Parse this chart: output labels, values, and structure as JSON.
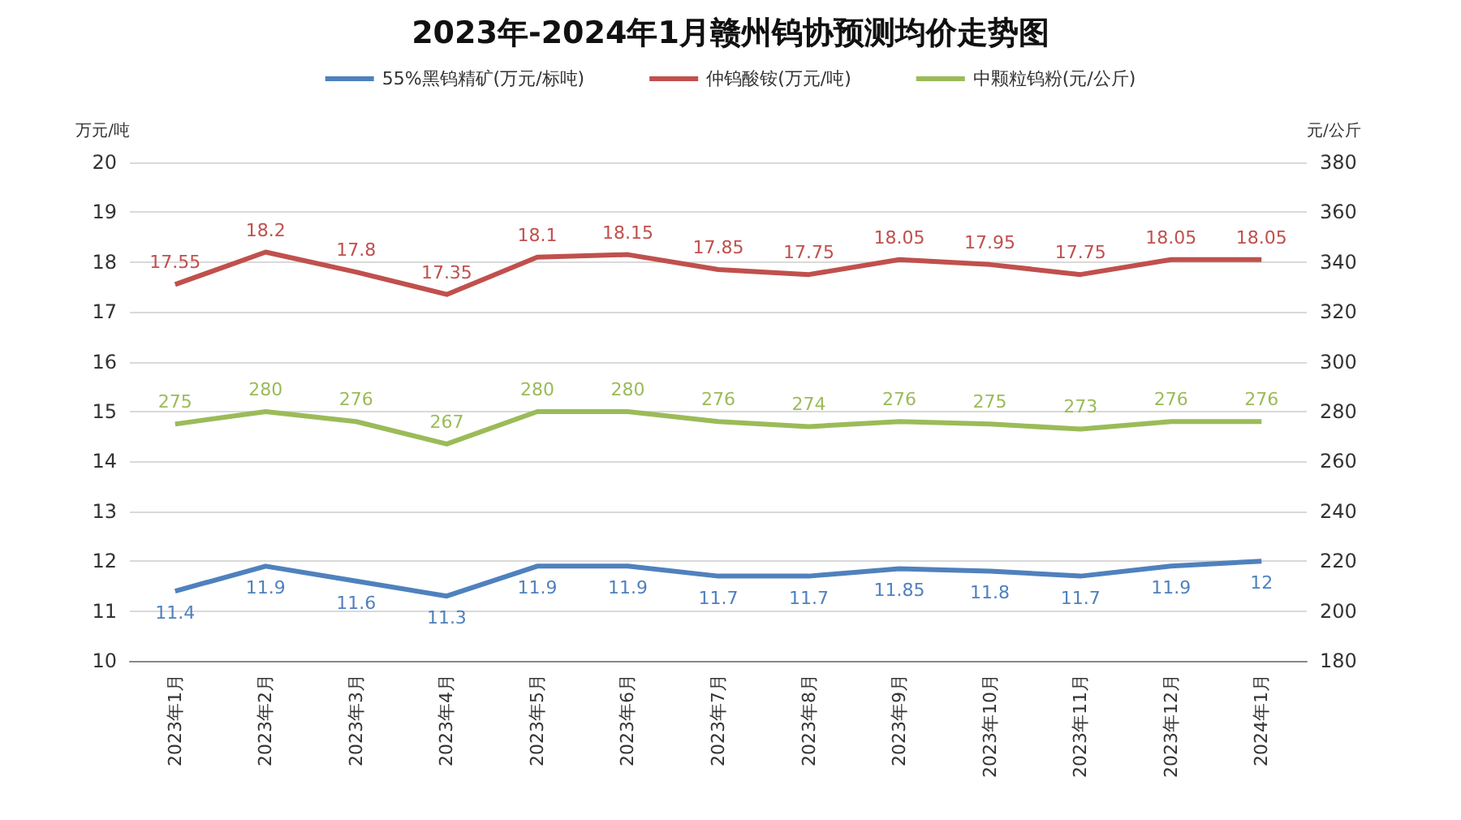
{
  "chart_data": {
    "type": "line",
    "title": "2023年-2024年1月赣州钨协预测均价走势图",
    "ylabel": "万元/吨",
    "y2label": "元/公斤",
    "categories": [
      "2023年1月",
      "2023年2月",
      "2023年3月",
      "2023年4月",
      "2023年5月",
      "2023年6月",
      "2023年7月",
      "2023年8月",
      "2023年9月",
      "2023年10月",
      "2023年11月",
      "2023年12月",
      "2024年1月"
    ],
    "series": [
      {
        "name": "55%黑钨精矿(万元/标吨)",
        "color": "#4f81bd",
        "values": [
          11.4,
          11.9,
          11.6,
          11.3,
          11.9,
          11.9,
          11.7,
          11.7,
          11.85,
          11.8,
          11.7,
          11.9,
          12
        ]
      },
      {
        "name": "仲钨酸铵(万元/吨)",
        "color": "#c0504d",
        "values": [
          17.55,
          18.2,
          17.8,
          17.35,
          18.1,
          18.15,
          17.85,
          17.75,
          18.05,
          17.95,
          17.75,
          18.05,
          18.05
        ]
      },
      {
        "name": "中颗粒钨粉(元/公斤)",
        "color": "#9bbb59",
        "axis": "y2",
        "values": [
          275,
          280,
          276,
          267,
          280,
          280,
          276,
          274,
          276,
          275,
          273,
          276,
          276
        ]
      }
    ],
    "ylim": [
      10,
      20
    ],
    "yticks": [
      10,
      11,
      12,
      13,
      14,
      15,
      16,
      17,
      18,
      19,
      20
    ],
    "y2lim": [
      180,
      380
    ],
    "y2ticks": [
      180,
      200,
      220,
      240,
      260,
      280,
      300,
      320,
      340,
      360,
      380
    ],
    "grid": "y",
    "legend": "top",
    "data_labels": true,
    "marker": "none",
    "line_style": "solid"
  }
}
